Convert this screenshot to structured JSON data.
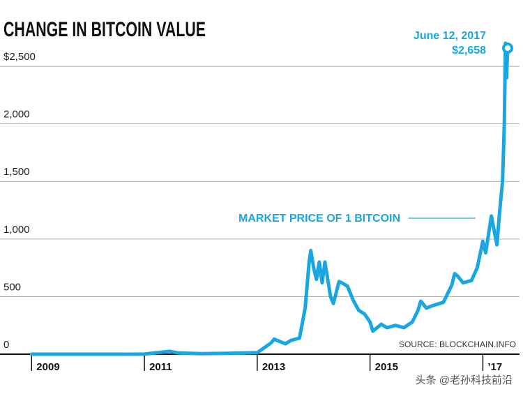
{
  "chart_data": {
    "type": "line",
    "title": "CHANGE IN BITCOIN VALUE",
    "source": "SOURCE: BLOCKCHAIN.INFO",
    "watermark": "头条 @老孙科技前沿",
    "xlim": [
      2008.44,
      2017.65
    ],
    "xticks": [
      2009,
      2011,
      2013,
      2015,
      {
        "value": 2017,
        "label": "’17"
      }
    ],
    "ylim": [
      0,
      2900
    ],
    "yticks": [
      0,
      {
        "value": 500,
        "label": "500"
      },
      {
        "value": 1000,
        "label": "1,000"
      },
      {
        "value": 1500,
        "label": "1,500"
      },
      {
        "value": 2000,
        "label": "2,000"
      },
      {
        "value": 2500,
        "label": "$2,500"
      }
    ],
    "grid": true,
    "series": [
      {
        "name": "MARKET PRICE OF 1 BITCOIN",
        "color": "#1aa6e0",
        "x": [
          2009.0,
          2010.5,
          2011.0,
          2011.45,
          2011.6,
          2012.0,
          2012.5,
          2013.0,
          2013.25,
          2013.3,
          2013.4,
          2013.5,
          2013.6,
          2013.75,
          2013.85,
          2013.92,
          2013.95,
          2014.0,
          2014.05,
          2014.1,
          2014.15,
          2014.2,
          2014.3,
          2014.35,
          2014.45,
          2014.5,
          2014.6,
          2014.7,
          2014.8,
          2014.9,
          2015.0,
          2015.05,
          2015.2,
          2015.3,
          2015.45,
          2015.6,
          2015.75,
          2015.85,
          2015.9,
          2016.0,
          2016.1,
          2016.3,
          2016.45,
          2016.5,
          2016.55,
          2016.65,
          2016.8,
          2016.9,
          2017.0,
          2017.05,
          2017.15,
          2017.25,
          2017.3,
          2017.35,
          2017.38,
          2017.4,
          2017.42,
          2017.44
        ],
        "values": [
          0,
          0.1,
          0.5,
          25,
          10,
          5,
          7,
          13,
          100,
          130,
          110,
          90,
          120,
          140,
          400,
          800,
          900,
          750,
          650,
          800,
          620,
          800,
          500,
          440,
          630,
          620,
          590,
          470,
          380,
          350,
          280,
          200,
          260,
          230,
          250,
          230,
          280,
          380,
          460,
          400,
          420,
          450,
          600,
          700,
          680,
          620,
          640,
          750,
          980,
          880,
          1200,
          950,
          1250,
          1500,
          2000,
          2700,
          2400,
          2658
        ]
      }
    ],
    "annotations": [
      {
        "date": "June 12, 2017",
        "value": 2658,
        "value_label": "$2,658"
      }
    ]
  }
}
